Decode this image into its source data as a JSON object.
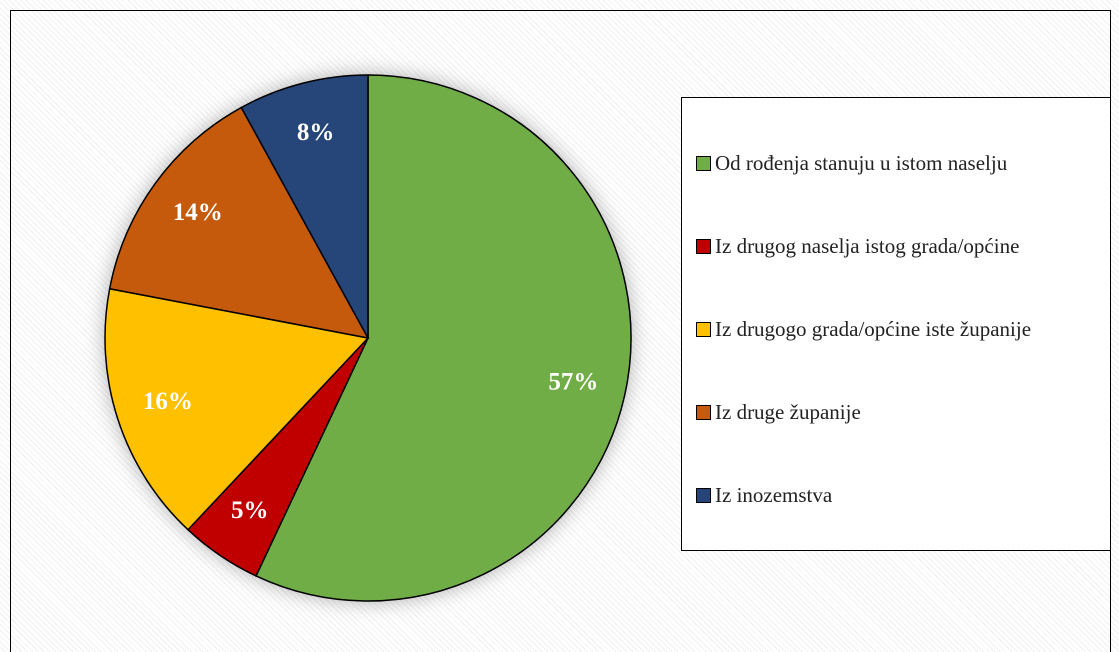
{
  "chart_data": {
    "type": "pie",
    "categories": [
      "Od rođenja stanuju u istom naselju",
      "Iz drugog naselja istog grada/općine",
      "Iz drugogo grada/općine iste županije",
      "Iz druge županije",
      "Iz inozemstva"
    ],
    "values": [
      57,
      5,
      16,
      14,
      8
    ],
    "value_labels": [
      "57%",
      "5%",
      "16%",
      "14%",
      "8%"
    ],
    "colors": [
      "#70ad47",
      "#c00000",
      "#ffc000",
      "#c55a11",
      "#264478"
    ],
    "legend": "right"
  }
}
